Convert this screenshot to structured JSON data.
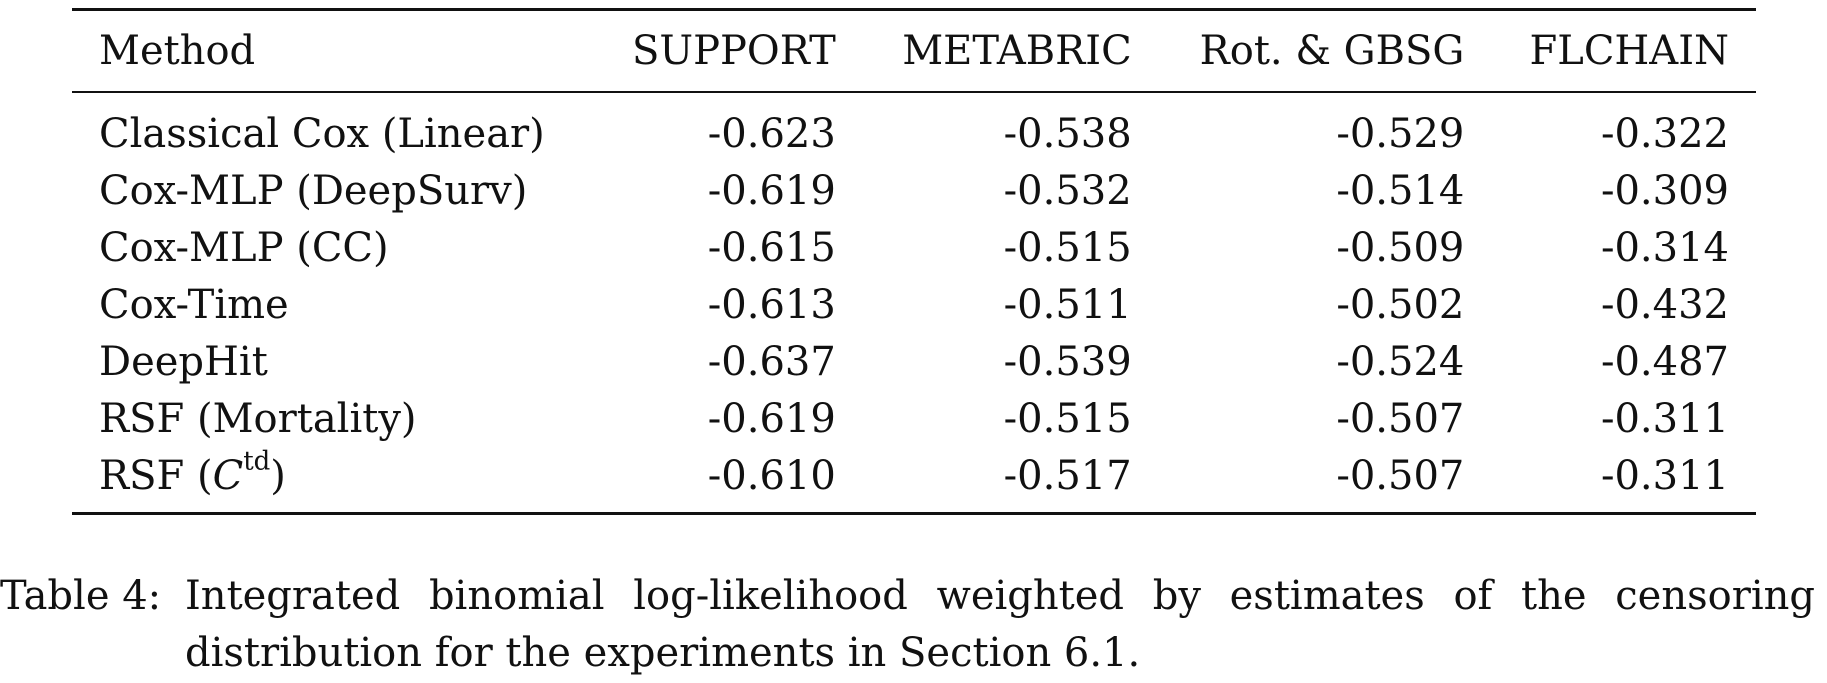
{
  "table": {
    "headers": [
      "Method",
      "SUPPORT",
      "METABRIC",
      "Rot. & GBSG",
      "FLCHAIN"
    ],
    "rows": [
      {
        "method": "Classical Cox (Linear)",
        "values": [
          "-0.623",
          "-0.538",
          "-0.529",
          "-0.322"
        ],
        "best": [
          false,
          false,
          false,
          false
        ]
      },
      {
        "method": "Cox-MLP (DeepSurv)",
        "values": [
          "-0.619",
          "-0.532",
          "-0.514",
          "-0.309"
        ],
        "best": [
          false,
          false,
          false,
          true
        ]
      },
      {
        "method": "Cox-MLP (CC)",
        "values": [
          "-0.615",
          "-0.515",
          "-0.509",
          "-0.314"
        ],
        "best": [
          false,
          false,
          false,
          false
        ]
      },
      {
        "method": "Cox-Time",
        "values": [
          "-0.613",
          "-0.511",
          "-0.502",
          "-0.432"
        ],
        "best": [
          false,
          true,
          true,
          false
        ]
      },
      {
        "method": "DeepHit",
        "values": [
          "-0.637",
          "-0.539",
          "-0.524",
          "-0.487"
        ],
        "best": [
          false,
          false,
          false,
          false
        ]
      },
      {
        "method": "RSF (Mortality)",
        "values": [
          "-0.619",
          "-0.515",
          "-0.507",
          "-0.311"
        ],
        "best": [
          false,
          false,
          false,
          false
        ]
      },
      {
        "method": "RSF (C^td)",
        "method_parts": {
          "prefix": "RSF (",
          "base": "C",
          "sup": "td",
          "suffix": ")"
        },
        "values": [
          "-0.610",
          "-0.517",
          "-0.507",
          "-0.311"
        ],
        "best": [
          true,
          false,
          false,
          false
        ]
      }
    ]
  },
  "caption": {
    "label": "Table 4:",
    "text": "Integrated binomial log-likelihood weighted by estimates of the censoring distribution for the experiments in Section 6.1."
  }
}
